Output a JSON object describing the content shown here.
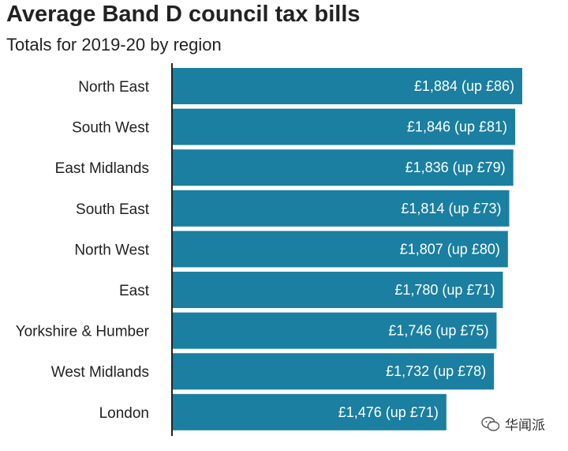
{
  "chart_data": {
    "type": "bar",
    "orientation": "horizontal",
    "title": "Average Band D council tax bills",
    "subtitle": "Totals for 2019-20 by region",
    "categories": [
      "North East",
      "South West",
      "East Midlands",
      "South East",
      "North West",
      "East",
      "Yorkshire & Humber",
      "West Midlands",
      "London"
    ],
    "values": [
      1884,
      1846,
      1836,
      1814,
      1807,
      1780,
      1746,
      1732,
      1476
    ],
    "data_labels": [
      "£1,884 (up £86)",
      "£1,846 (up £81)",
      "£1,836 (up £79)",
      "£1,814 (up £73)",
      "£1,807 (up £80)",
      "£1,780 (up £71)",
      "£1,746 (up £75)",
      "£1,732 (up £78)",
      "£1,476 (up £71)"
    ],
    "xlim": [
      0,
      1884
    ],
    "grid": false,
    "bar_color": "#1a7fa0"
  },
  "watermark": {
    "text": "华闻派",
    "icon": "wechat-icon"
  }
}
